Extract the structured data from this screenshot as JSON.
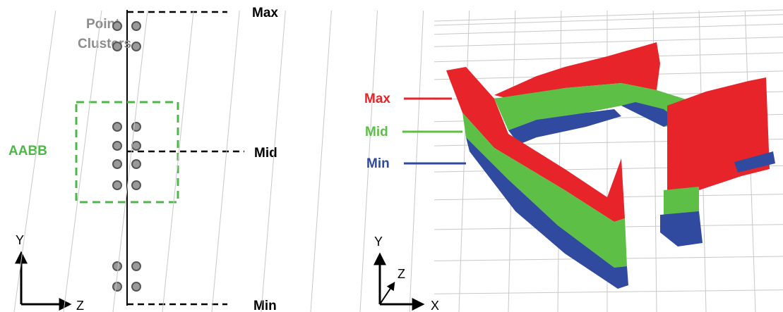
{
  "left": {
    "cluster_label": [
      "Point",
      "Clusters"
    ],
    "aabb_label": "AABB",
    "levels": [
      "Max",
      "Mid",
      "Min"
    ],
    "axes": {
      "y": "Y",
      "z": "Z"
    }
  },
  "right": {
    "levels": [
      "Max",
      "Mid",
      "Min"
    ],
    "axes": {
      "y": "Y",
      "z": "Z",
      "x": "X"
    }
  }
}
